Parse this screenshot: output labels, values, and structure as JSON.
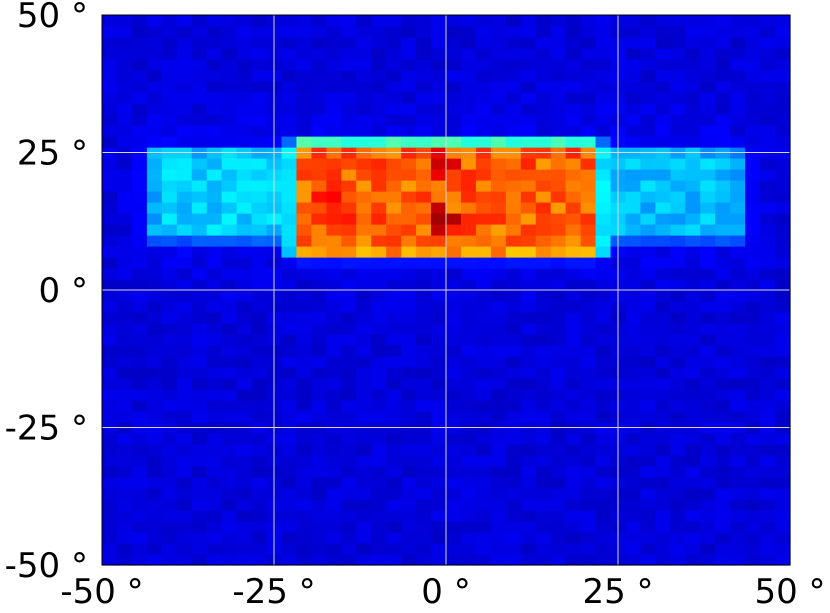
{
  "chart_data": {
    "type": "heatmap",
    "title": "",
    "xlabel": "",
    "ylabel": "",
    "xlim": [
      -50,
      50
    ],
    "ylim": [
      -50,
      50
    ],
    "grid": true,
    "colormap": "jet",
    "background_level": 0.09,
    "x_ticks": [
      {
        "value": -50,
        "label": "-50 °"
      },
      {
        "value": -25,
        "label": "-25 °"
      },
      {
        "value": 0,
        "label": "0 °"
      },
      {
        "value": 25,
        "label": "25 °"
      },
      {
        "value": 50,
        "label": "50 °"
      }
    ],
    "y_ticks": [
      {
        "value": 50,
        "label": "50 °"
      },
      {
        "value": 25,
        "label": "25 °"
      },
      {
        "value": 0,
        "label": "0 °"
      },
      {
        "value": -25,
        "label": "-25 °"
      },
      {
        "value": -50,
        "label": "-50 °"
      }
    ],
    "bins": {
      "x": 46,
      "y": 50
    },
    "regions": [
      {
        "name": "central band",
        "x_range": [
          -22,
          22
        ],
        "y_range": [
          6,
          27
        ],
        "peak_level": 0.78
      },
      {
        "name": "left wing",
        "x_range": [
          -43,
          -22
        ],
        "y_range": [
          9,
          26
        ],
        "peak_level": 0.33
      },
      {
        "name": "right wing",
        "x_range": [
          22,
          43
        ],
        "y_range": [
          9,
          26
        ],
        "peak_level": 0.31
      }
    ],
    "hot_spots": [
      {
        "x": -0.5,
        "y": 13,
        "level": 0.97
      },
      {
        "x": -0.5,
        "y": 23,
        "level": 0.93
      },
      {
        "x": -17,
        "y": 17,
        "level": 0.88
      },
      {
        "x": -15,
        "y": 13,
        "level": 0.86
      },
      {
        "x": 2,
        "y": 12,
        "level": 0.86
      },
      {
        "x": 3,
        "y": 20,
        "level": 0.85
      }
    ]
  }
}
